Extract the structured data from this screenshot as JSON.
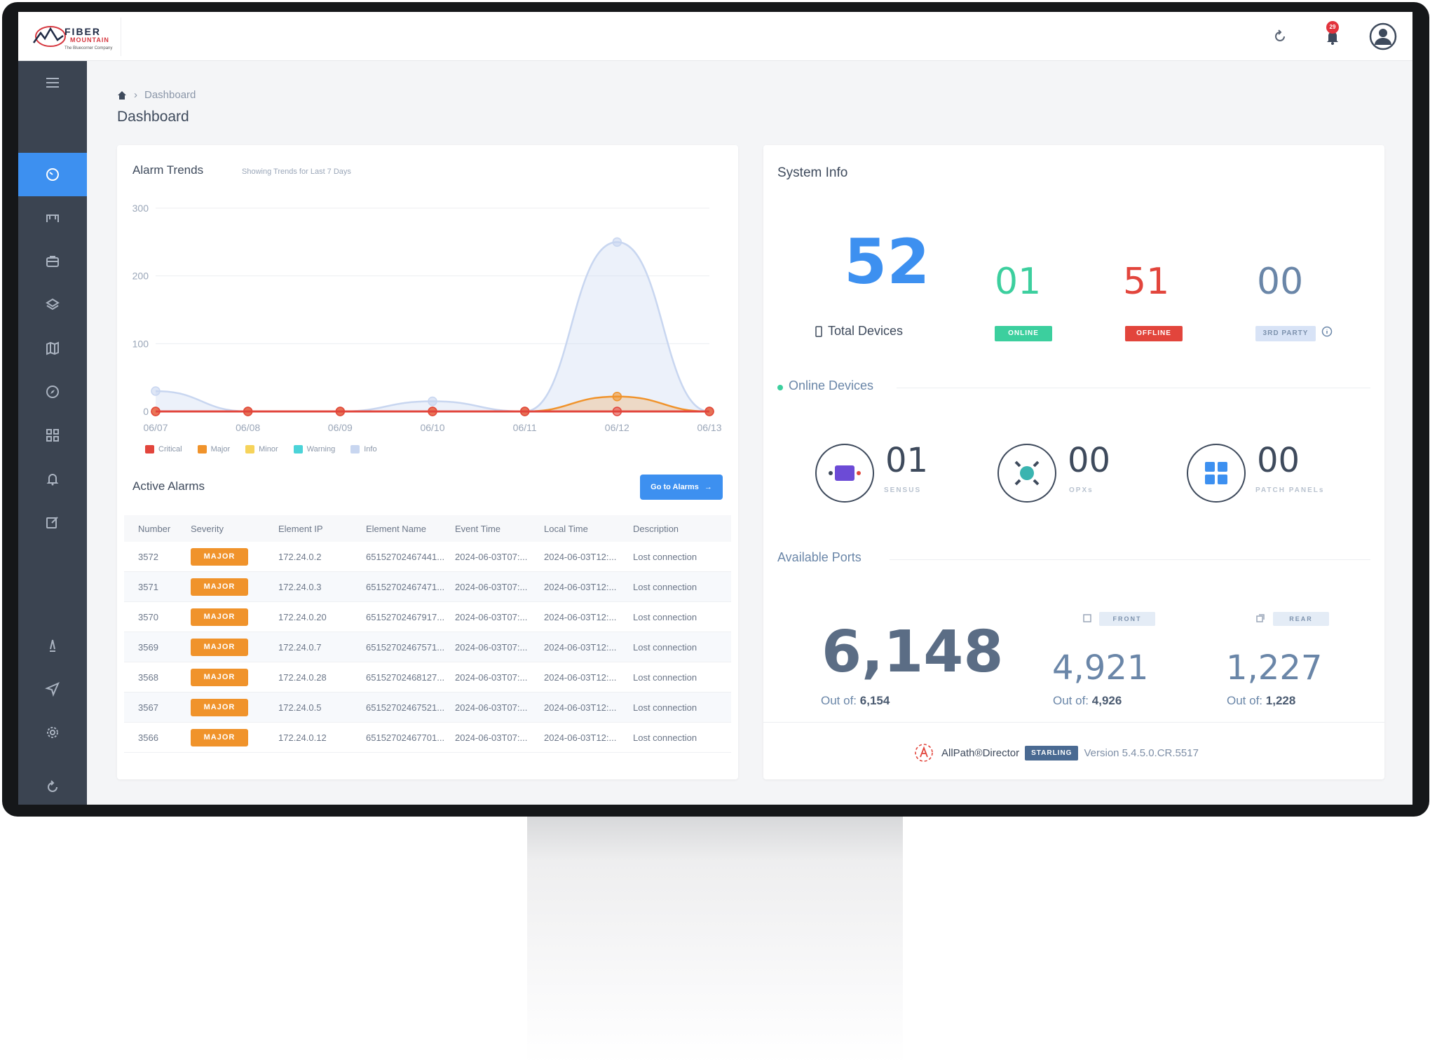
{
  "brand": {
    "title": "FIBER",
    "subtitle": "MOUNTAIN",
    "tagline": "The Bluecorner Company"
  },
  "topbar": {
    "notification_count": "29"
  },
  "breadcrumb": {
    "current": "Dashboard"
  },
  "page_title": "Dashboard",
  "alarm_trends": {
    "title": "Alarm Trends",
    "subtitle": "Showing Trends for Last 7 Days",
    "legend": [
      {
        "label": "Critical",
        "color": "#e2453c"
      },
      {
        "label": "Major",
        "color": "#f0932b"
      },
      {
        "label": "Minor",
        "color": "#f6d35a"
      },
      {
        "label": "Warning",
        "color": "#4bd3d8"
      },
      {
        "label": "Info",
        "color": "#c8d6f0"
      }
    ]
  },
  "chart_data": {
    "type": "area",
    "categories": [
      "06/07",
      "06/08",
      "06/09",
      "06/10",
      "06/11",
      "06/12",
      "06/13"
    ],
    "ylim": [
      0,
      300
    ],
    "yticks": [
      0,
      100,
      200,
      300
    ],
    "series": [
      {
        "name": "Critical",
        "color": "#e2453c",
        "values": [
          0,
          0,
          0,
          0,
          0,
          0,
          0
        ]
      },
      {
        "name": "Major",
        "color": "#f0932b",
        "values": [
          0,
          0,
          0,
          0,
          0,
          22,
          0
        ]
      },
      {
        "name": "Info",
        "color": "#c8d6f0",
        "values": [
          30,
          0,
          0,
          15,
          0,
          250,
          0
        ]
      }
    ]
  },
  "active_alarms": {
    "title": "Active Alarms",
    "goto_label": "Go to Alarms",
    "columns": [
      "Number",
      "Severity",
      "Element IP",
      "Element Name",
      "Event Time",
      "Local Time",
      "Description"
    ],
    "rows": [
      {
        "number": "3572",
        "severity": "MAJOR",
        "ip": "172.24.0.2",
        "name": "65152702467441...",
        "event": "2024-06-03T07:...",
        "local": "2024-06-03T12:...",
        "desc": "Lost connection"
      },
      {
        "number": "3571",
        "severity": "MAJOR",
        "ip": "172.24.0.3",
        "name": "65152702467471...",
        "event": "2024-06-03T07:...",
        "local": "2024-06-03T12:...",
        "desc": "Lost connection"
      },
      {
        "number": "3570",
        "severity": "MAJOR",
        "ip": "172.24.0.20",
        "name": "65152702467917...",
        "event": "2024-06-03T07:...",
        "local": "2024-06-03T12:...",
        "desc": "Lost connection"
      },
      {
        "number": "3569",
        "severity": "MAJOR",
        "ip": "172.24.0.7",
        "name": "65152702467571...",
        "event": "2024-06-03T07:...",
        "local": "2024-06-03T12:...",
        "desc": "Lost connection"
      },
      {
        "number": "3568",
        "severity": "MAJOR",
        "ip": "172.24.0.28",
        "name": "65152702468127...",
        "event": "2024-06-03T07:...",
        "local": "2024-06-03T12:...",
        "desc": "Lost connection"
      },
      {
        "number": "3567",
        "severity": "MAJOR",
        "ip": "172.24.0.5",
        "name": "65152702467521...",
        "event": "2024-06-03T07:...",
        "local": "2024-06-03T12:...",
        "desc": "Lost connection"
      },
      {
        "number": "3566",
        "severity": "MAJOR",
        "ip": "172.24.0.12",
        "name": "65152702467701...",
        "event": "2024-06-03T07:...",
        "local": "2024-06-03T12:...",
        "desc": "Lost connection"
      }
    ]
  },
  "system_info": {
    "title": "System Info",
    "total_devices": {
      "value": "52",
      "label": "Total Devices"
    },
    "online": {
      "value": "01",
      "label": "ONLINE",
      "color": "#3ccf9e"
    },
    "offline": {
      "value": "51",
      "label": "OFFLINE",
      "color": "#e2453c"
    },
    "third_party": {
      "value": "00",
      "label": "3RD PARTY",
      "color": "#6a86a8"
    },
    "online_devices": {
      "title": "Online Devices",
      "items": [
        {
          "value": "01",
          "label": "SENSUS",
          "icon": "sensus-device-icon"
        },
        {
          "value": "00",
          "label": "OPXs",
          "icon": "opx-device-icon"
        },
        {
          "value": "00",
          "label": "PATCH PANELs",
          "icon": "patch-panel-icon"
        }
      ]
    },
    "available_ports": {
      "title": "Available Ports",
      "total": {
        "value": "6,148",
        "out_of_label": "Out of:",
        "out_of": "6,154"
      },
      "front": {
        "tag": "FRONT",
        "value": "4,921",
        "out_of_label": "Out of:",
        "out_of": "4,926"
      },
      "rear": {
        "tag": "REAR",
        "value": "1,227",
        "out_of_label": "Out of:",
        "out_of": "1,228"
      }
    },
    "footer": {
      "product": "AllPath®Director",
      "edition": "STARLING",
      "version": "Version 5.4.5.0.CR.5517"
    }
  }
}
